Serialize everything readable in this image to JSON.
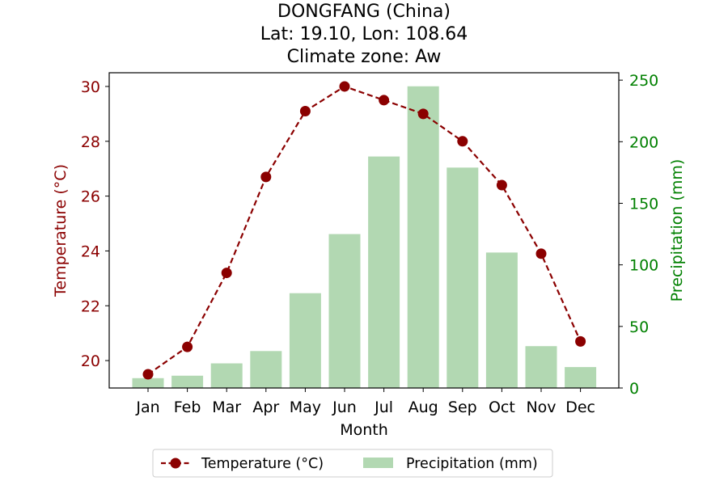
{
  "chart_data": {
    "type": "bar",
    "title": [
      "DONGFANG (China)",
      "Lat: 19.10, Lon: 108.64",
      "Climate zone: Aw"
    ],
    "categories": [
      "Jan",
      "Feb",
      "Mar",
      "Apr",
      "May",
      "Jun",
      "Jul",
      "Aug",
      "Sep",
      "Oct",
      "Nov",
      "Dec"
    ],
    "xlabel": "Month",
    "y_left": {
      "label": "Temperature (°C)",
      "range": [
        19,
        30.5
      ],
      "ticks": [
        20,
        22,
        24,
        26,
        28,
        30
      ],
      "color": "#8b0000"
    },
    "y_right": {
      "label": "Precipitation (mm)",
      "range": [
        0,
        256
      ],
      "ticks": [
        0,
        50,
        100,
        150,
        200,
        250
      ],
      "color": "#008000"
    },
    "series": [
      {
        "name": "Temperature (°C)",
        "type": "line",
        "axis": "left",
        "color": "#8b0000",
        "style": "dashed",
        "marker": "circle",
        "values": [
          19.5,
          20.5,
          23.2,
          26.7,
          29.1,
          30.0,
          29.5,
          29.0,
          28.0,
          26.4,
          23.9,
          20.7
        ]
      },
      {
        "name": "Precipitation (mm)",
        "type": "bar",
        "axis": "right",
        "color": "#b2d8b2",
        "values": [
          8,
          10,
          20,
          30,
          77,
          125,
          188,
          245,
          179,
          110,
          34,
          17
        ]
      }
    ],
    "legend": {
      "placement": "bottom-center",
      "entries": [
        "Temperature (°C)",
        "Precipitation (mm)"
      ]
    },
    "grid": false
  }
}
